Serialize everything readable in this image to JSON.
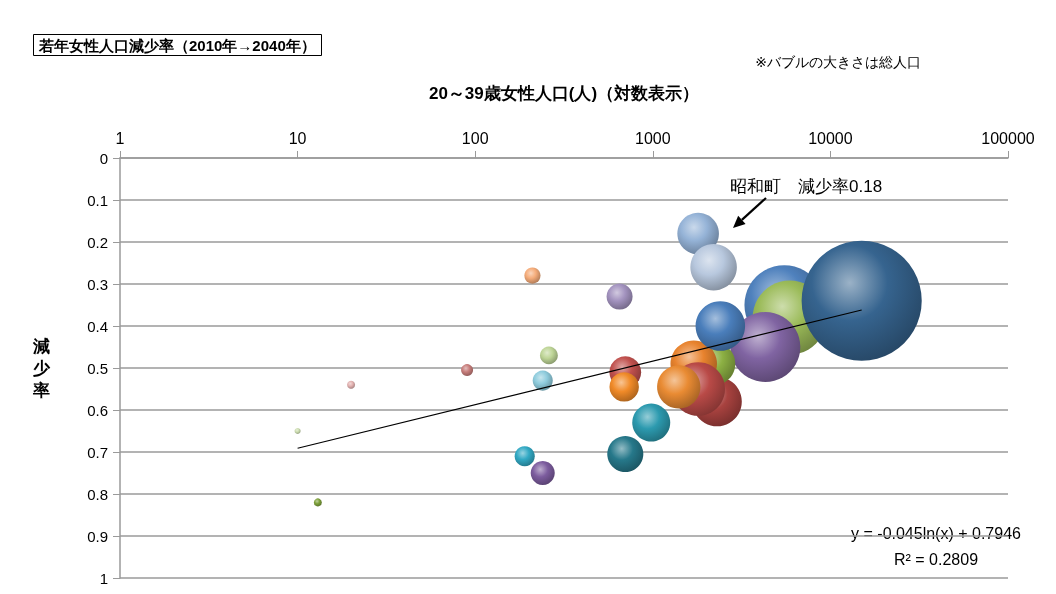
{
  "chart_data": {
    "type": "bubble",
    "title": "若年女性人口減少率（2010年→2040年）",
    "xlabel": "20～39歳女性人口(人)（対数表示）",
    "ylabel": "減少率",
    "annotations": [
      "※バブルの大きさは総人口",
      "昭和町　減少率0.18",
      "y = -0.045ln(x) + 0.7946",
      "R² = 0.2809"
    ],
    "log": "x",
    "grid": "y",
    "xlim": [
      1,
      100000
    ],
    "xticks": [
      1,
      10,
      100,
      1000,
      10000,
      100000
    ],
    "ylim": [
      1,
      0
    ],
    "yticks": [
      0,
      0.1,
      0.2,
      0.3,
      0.4,
      0.5,
      0.6,
      0.7,
      0.8,
      0.9,
      1
    ],
    "series": [
      {
        "x": [
          5500,
          5900,
          15000,
          4300,
          2300,
          2200,
          1700,
          1800,
          1400,
          2400,
          1800,
          2200,
          980,
          700,
          700,
          690,
          650,
          240,
          190,
          240,
          260,
          210,
          90,
          20,
          10,
          13
        ],
        "values": [
          0.35,
          0.38,
          0.34,
          0.45,
          0.58,
          0.49,
          0.49,
          0.55,
          0.545,
          0.4,
          0.18,
          0.26,
          0.63,
          0.705,
          0.51,
          0.545,
          0.33,
          0.53,
          0.71,
          0.75,
          0.47,
          0.28,
          0.505,
          0.54,
          0.65,
          0.82
        ],
        "sizes": [
          0.44,
          0.38,
          1,
          0.34,
          0.17,
          0.13,
          0.15,
          0.2,
          0.13,
          0.17,
          0.12,
          0.15,
          0.1,
          0.09,
          0.07,
          0.06,
          0.047,
          0.028,
          0.028,
          0.04,
          0.022,
          0.018,
          0.01,
          0.0044,
          0.0025,
          0.0044
        ],
        "colors": [
          "#4f81bd",
          "#9bbb59",
          "#36648f",
          "#8064a2",
          "#a8423f",
          "#8cb043",
          "#e8832e",
          "#b94a47",
          "#e98b33",
          "#4a7ebb",
          "#95b3d7",
          "#b8c8de",
          "#2c9aaf",
          "#26788a",
          "#c0504d",
          "#f08a28",
          "#a393bf",
          "#8fccdd",
          "#32a9c4",
          "#7c5c9e",
          "#bed597",
          "#f5ac7a",
          "#c77d7b",
          "#e3b2b1",
          "#ccddb0",
          "#7da03a"
        ]
      },
      {
        "type": "line",
        "x": [
          10,
          15000
        ],
        "values": [
          0.691,
          0.362
        ],
        "color": "#000000",
        "marker": "none"
      }
    ]
  }
}
